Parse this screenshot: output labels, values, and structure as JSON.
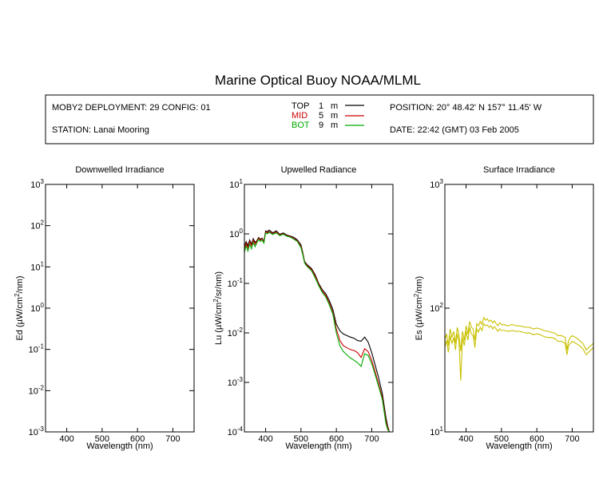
{
  "header": {
    "title": "Marine Optical Buoy NOAA/MLML",
    "deployment": "MOBY2 DEPLOYMENT: 29 CONFIG: 01",
    "station": "STATION: Lanai Mooring",
    "position": "POSITION: 20° 48.42' N   157° 11.45' W",
    "date": "DATE: 22:42 (GMT) 03 Feb 2005",
    "legend": [
      {
        "label": "TOP",
        "depth": "1",
        "unit": "m",
        "color": "#000000"
      },
      {
        "label": "MID",
        "depth": "5",
        "unit": "m",
        "color": "#cc0000"
      },
      {
        "label": "BOT",
        "depth": "9",
        "unit": "m",
        "color": "#00aa00"
      }
    ]
  },
  "chart_data": [
    {
      "type": "line",
      "title": "Downwelled Irradiance",
      "xlabel": "Wavelength (nm)",
      "ylabel": "Ed  (µW/cm²/nm)",
      "xlim": [
        340,
        760
      ],
      "ylim": [
        0.001,
        1000
      ],
      "yscale": "log",
      "xticks": [
        400,
        500,
        600,
        700
      ],
      "yticks": [
        {
          "base": "10",
          "exp": "-3"
        },
        {
          "base": "10",
          "exp": "-2"
        },
        {
          "base": "10",
          "exp": "-1"
        },
        {
          "base": "10",
          "exp": "0"
        },
        {
          "base": "10",
          "exp": "1"
        },
        {
          "base": "10",
          "exp": "2"
        },
        {
          "base": "10",
          "exp": "3"
        }
      ],
      "series": []
    },
    {
      "type": "line",
      "title": "Upwelled Radiance",
      "xlabel": "Wavelength (nm)",
      "ylabel": "Lu  (µW/cm²/sr/nm)",
      "xlim": [
        340,
        760
      ],
      "ylim": [
        0.0001,
        10
      ],
      "yscale": "log",
      "xticks": [
        400,
        500,
        600,
        700
      ],
      "yticks": [
        {
          "base": "10",
          "exp": "-4"
        },
        {
          "base": "10",
          "exp": "-3"
        },
        {
          "base": "10",
          "exp": "-2"
        },
        {
          "base": "10",
          "exp": "-1"
        },
        {
          "base": "10",
          "exp": "0"
        },
        {
          "base": "10",
          "exp": "1"
        }
      ],
      "series": [
        {
          "color": "#000000",
          "x": [
            340,
            345,
            350,
            355,
            360,
            365,
            370,
            375,
            380,
            385,
            390,
            395,
            400,
            405,
            410,
            420,
            430,
            440,
            450,
            460,
            470,
            480,
            490,
            500,
            505,
            510,
            515,
            520,
            530,
            540,
            550,
            560,
            570,
            580,
            590,
            600,
            610,
            620,
            630,
            640,
            650,
            660,
            670,
            680,
            690,
            700,
            710,
            720,
            730,
            740,
            745,
            750
          ],
          "y": [
            0.55,
            0.7,
            0.58,
            0.75,
            0.62,
            0.8,
            0.68,
            0.72,
            0.85,
            0.78,
            0.82,
            0.7,
            1.15,
            1.1,
            1.2,
            1.05,
            1.15,
            0.98,
            1.05,
            0.95,
            0.9,
            0.85,
            0.75,
            0.6,
            0.42,
            0.28,
            0.25,
            0.23,
            0.2,
            0.15,
            0.1,
            0.075,
            0.062,
            0.045,
            0.03,
            0.015,
            0.011,
            0.0095,
            0.0088,
            0.0082,
            0.0078,
            0.007,
            0.0068,
            0.0082,
            0.0065,
            0.004,
            0.0022,
            0.0012,
            0.0006,
            0.0002,
            0.00013,
            0.0001
          ]
        },
        {
          "color": "#cc0000",
          "x": [
            340,
            345,
            350,
            355,
            360,
            365,
            370,
            375,
            380,
            385,
            390,
            395,
            400,
            405,
            410,
            420,
            430,
            440,
            450,
            460,
            470,
            480,
            490,
            500,
            505,
            510,
            515,
            520,
            530,
            540,
            550,
            560,
            570,
            580,
            590,
            600,
            610,
            620,
            630,
            640,
            650,
            660,
            670,
            680,
            690,
            700,
            710,
            720,
            730,
            740,
            745,
            750
          ],
          "y": [
            0.5,
            0.65,
            0.52,
            0.7,
            0.58,
            0.75,
            0.62,
            0.7,
            0.82,
            0.75,
            0.8,
            0.68,
            1.1,
            1.05,
            1.12,
            1.0,
            1.1,
            0.95,
            1.0,
            0.92,
            0.88,
            0.8,
            0.72,
            0.55,
            0.4,
            0.27,
            0.24,
            0.22,
            0.19,
            0.14,
            0.095,
            0.07,
            0.057,
            0.04,
            0.026,
            0.012,
            0.007,
            0.0055,
            0.005,
            0.0046,
            0.0044,
            0.004,
            0.0032,
            0.0048,
            0.0042,
            0.0028,
            0.0016,
            0.0009,
            0.0005,
            0.00017,
            0.00012,
            0.0001
          ]
        },
        {
          "color": "#00aa00",
          "x": [
            340,
            345,
            350,
            355,
            360,
            365,
            370,
            375,
            380,
            385,
            390,
            395,
            400,
            405,
            410,
            420,
            430,
            440,
            450,
            460,
            470,
            480,
            490,
            500,
            505,
            510,
            515,
            520,
            530,
            540,
            550,
            560,
            570,
            580,
            590,
            600,
            610,
            620,
            630,
            640,
            650,
            660,
            670,
            680,
            690,
            700,
            710,
            720,
            730,
            740,
            745,
            750
          ],
          "y": [
            0.42,
            0.58,
            0.45,
            0.62,
            0.5,
            0.68,
            0.55,
            0.65,
            0.78,
            0.7,
            0.76,
            0.65,
            1.05,
            1.0,
            1.08,
            0.97,
            1.05,
            0.92,
            0.98,
            0.9,
            0.86,
            0.78,
            0.7,
            0.52,
            0.38,
            0.26,
            0.23,
            0.21,
            0.18,
            0.13,
            0.09,
            0.066,
            0.053,
            0.037,
            0.024,
            0.01,
            0.0055,
            0.0042,
            0.0036,
            0.0031,
            0.0028,
            0.0025,
            0.0021,
            0.0038,
            0.0035,
            0.0024,
            0.0014,
            0.0008,
            0.00045,
            0.00015,
            0.00011,
            0.0001
          ]
        }
      ]
    },
    {
      "type": "line",
      "title": "Surface Irradiance",
      "xlabel": "Wavelength (nm)",
      "ylabel": "Es  (µW/cm²/nm)",
      "xlim": [
        340,
        760
      ],
      "ylim": [
        10,
        1000
      ],
      "yscale": "log",
      "xticks": [
        400,
        500,
        600,
        700
      ],
      "yticks": [
        {
          "base": "10",
          "exp": "1"
        },
        {
          "base": "10",
          "exp": "2"
        },
        {
          "base": "10",
          "exp": "3"
        }
      ],
      "series": [
        {
          "color": "#c8c000",
          "x": [
            340,
            345,
            350,
            355,
            360,
            365,
            370,
            375,
            380,
            385,
            390,
            395,
            400,
            405,
            410,
            415,
            420,
            425,
            430,
            435,
            440,
            445,
            450,
            455,
            460,
            465,
            470,
            475,
            480,
            485,
            490,
            495,
            500,
            510,
            520,
            530,
            540,
            550,
            560,
            570,
            580,
            590,
            600,
            610,
            620,
            630,
            640,
            650,
            660,
            670,
            680,
            685,
            690,
            695,
            700,
            710,
            720,
            730,
            740,
            750,
            760
          ],
          "y": [
            55,
            62,
            50,
            68,
            58,
            65,
            52,
            70,
            60,
            45,
            65,
            55,
            72,
            62,
            78,
            70,
            68,
            55,
            75,
            72,
            78,
            74,
            84,
            80,
            82,
            78,
            80,
            76,
            79,
            75,
            72,
            76,
            74,
            73,
            72,
            74,
            72,
            72,
            71,
            70,
            70,
            68,
            69,
            68,
            66,
            65,
            64,
            63,
            60,
            60,
            58,
            46,
            55,
            58,
            60,
            58,
            55,
            52,
            46,
            49,
            52
          ]
        },
        {
          "color": "#c8c000",
          "x": [
            340,
            345,
            350,
            355,
            360,
            365,
            370,
            375,
            380,
            385,
            390,
            395,
            400,
            405,
            410,
            415,
            420,
            425,
            430,
            435,
            440,
            445,
            450,
            455,
            460,
            465,
            470,
            475,
            480,
            485,
            490,
            495,
            500,
            510,
            520,
            530,
            540,
            550,
            560,
            570,
            580,
            590,
            600,
            610,
            620,
            630,
            640,
            650,
            660,
            670,
            680,
            685,
            690,
            695,
            700,
            710,
            720,
            730,
            740,
            750,
            760
          ],
          "y": [
            48,
            55,
            44,
            60,
            52,
            58,
            46,
            62,
            54,
            26,
            58,
            50,
            65,
            55,
            70,
            62,
            60,
            48,
            68,
            64,
            70,
            66,
            75,
            72,
            73,
            70,
            72,
            68,
            71,
            68,
            65,
            68,
            66,
            66,
            65,
            66,
            65,
            65,
            64,
            63,
            63,
            61,
            62,
            61,
            59,
            58,
            58,
            57,
            54,
            54,
            52,
            42,
            50,
            52,
            54,
            52,
            50,
            47,
            42,
            45,
            48
          ]
        }
      ]
    }
  ]
}
